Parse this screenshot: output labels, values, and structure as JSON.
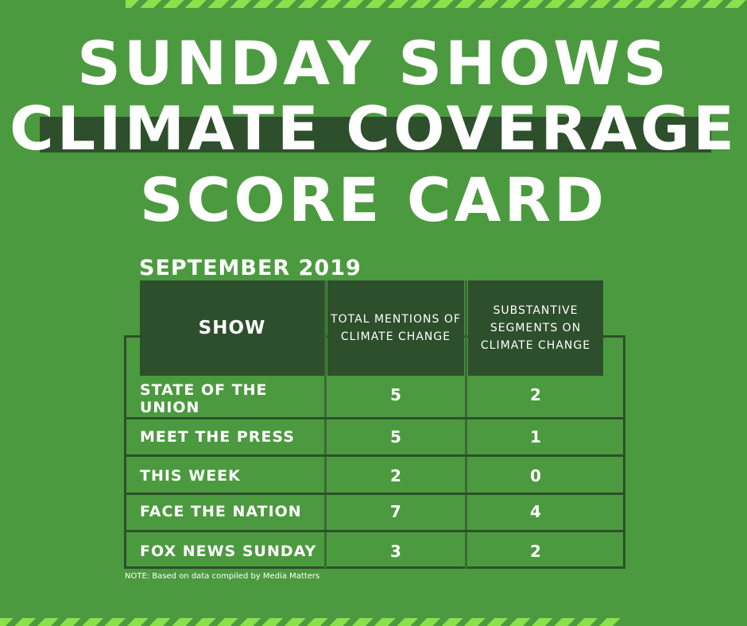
{
  "title": {
    "line1": "SUNDAY SHOWS",
    "line2": "CLIMATE COVERAGE",
    "line3": "SCORE CARD"
  },
  "period": "SEPTEMBER 2019",
  "table": {
    "headers": {
      "show": "SHOW",
      "mentions": "TOTAL MENTIONS OF CLIMATE CHANGE",
      "segments": "SUBSTANTIVE SEGMENTS ON CLIMATE CHANGE"
    },
    "rows": [
      {
        "show": "STATE OF THE UNION",
        "mentions": "5",
        "segments": "2"
      },
      {
        "show": "MEET THE PRESS",
        "mentions": "5",
        "segments": "1"
      },
      {
        "show": "THIS WEEK",
        "mentions": "2",
        "segments": "0"
      },
      {
        "show": "FACE THE NATION",
        "mentions": "7",
        "segments": "4"
      },
      {
        "show": "FOX NEWS SUNDAY",
        "mentions": "3",
        "segments": "2"
      }
    ]
  },
  "note": "NOTE: Based  on data compiled by Media Matters",
  "colors": {
    "background": "#4c9a3f",
    "dark_green": "#2d4f2b",
    "stripe": "#8ce04a",
    "text": "#ffffff"
  }
}
